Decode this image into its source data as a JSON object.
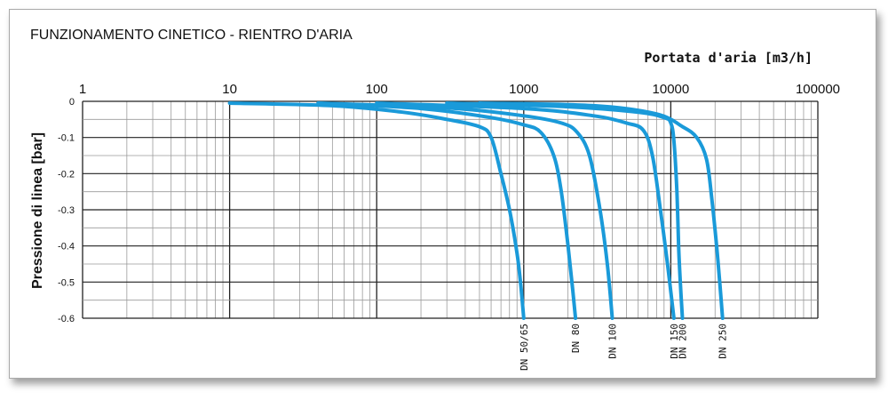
{
  "chart_data": {
    "type": "line",
    "title": "FUNZIONAMENTO CINETICO - RIENTRO D'ARIA",
    "xlabel": "Portata d'aria [m3/h]",
    "ylabel": "Pressione di linea [bar]",
    "xscale": "log",
    "xlim": [
      1,
      100000
    ],
    "ylim": [
      -0.6,
      0
    ],
    "x_ticks": [
      "1",
      "10",
      "100",
      "1000",
      "10000",
      "100000"
    ],
    "y_ticks": [
      "0",
      "-0.1",
      "-0.2",
      "-0.3",
      "-0.4",
      "-0.5",
      "-0.6"
    ],
    "grid": true,
    "line_color": "#1a9ad9",
    "series": [
      {
        "name": "DN 50/65",
        "x": [
          10,
          50,
          150,
          300,
          500,
          600,
          700,
          800,
          900,
          950,
          1000
        ],
        "y": [
          -0.005,
          -0.012,
          -0.03,
          -0.05,
          -0.07,
          -0.1,
          -0.2,
          -0.3,
          -0.42,
          -0.5,
          -0.6
        ]
      },
      {
        "name": "DN 80",
        "x": [
          40,
          200,
          600,
          1000,
          1300,
          1600,
          1800,
          2000,
          2150,
          2250
        ],
        "y": [
          -0.005,
          -0.02,
          -0.045,
          -0.065,
          -0.085,
          -0.15,
          -0.25,
          -0.4,
          -0.52,
          -0.6
        ]
      },
      {
        "name": "DN 100",
        "x": [
          40,
          300,
          1000,
          1800,
          2300,
          2800,
          3300,
          3700,
          4000
        ],
        "y": [
          -0.005,
          -0.018,
          -0.04,
          -0.06,
          -0.085,
          -0.15,
          -0.3,
          -0.45,
          -0.6
        ]
      },
      {
        "name": "DN 150",
        "x": [
          100,
          1000,
          3000,
          5000,
          6500,
          7500,
          8500,
          9500,
          10500
        ],
        "y": [
          -0.005,
          -0.02,
          -0.04,
          -0.06,
          -0.08,
          -0.15,
          -0.3,
          -0.45,
          -0.6
        ]
      },
      {
        "name": "DN 200",
        "x": [
          300,
          2000,
          6000,
          9000,
          10000,
          10500,
          11000,
          11300,
          11600,
          12000
        ],
        "y": [
          -0.005,
          -0.015,
          -0.03,
          -0.045,
          -0.06,
          -0.11,
          -0.25,
          -0.4,
          -0.5,
          -0.6
        ]
      },
      {
        "name": "DN 250",
        "x": [
          500,
          3000,
          8000,
          12000,
          15000,
          17500,
          19000,
          20500,
          21500,
          22500
        ],
        "y": [
          -0.005,
          -0.012,
          -0.035,
          -0.07,
          -0.1,
          -0.16,
          -0.27,
          -0.4,
          -0.5,
          -0.6
        ]
      }
    ]
  }
}
